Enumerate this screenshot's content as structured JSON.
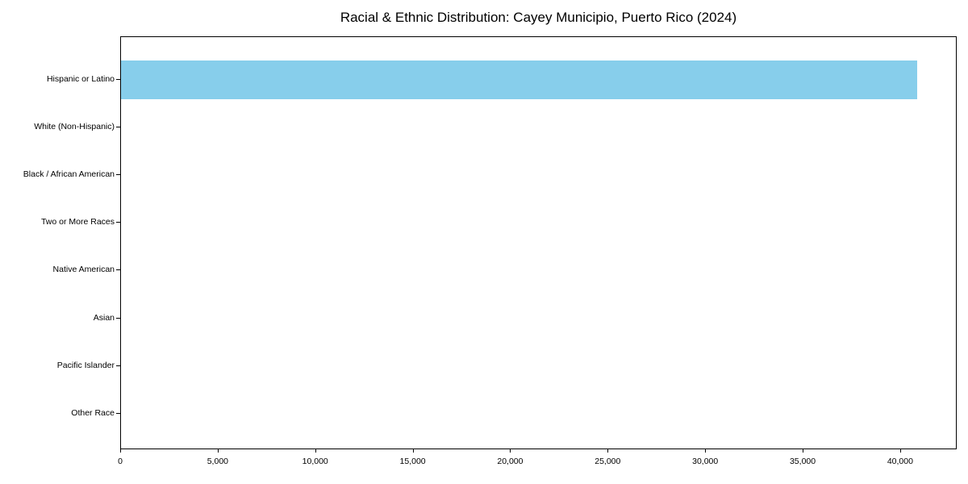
{
  "chart_data": {
    "type": "bar",
    "orientation": "horizontal",
    "title": "Racial & Ethnic Distribution: Cayey Municipio, Puerto Rico (2024)",
    "categories": [
      "Hispanic or Latino",
      "White (Non-Hispanic)",
      "Black / African American",
      "Two or More Races",
      "Native American",
      "Asian",
      "Pacific Islander",
      "Other Race"
    ],
    "values": [
      40850,
      0,
      0,
      0,
      0,
      0,
      0,
      0
    ],
    "xlabel": "",
    "ylabel": "",
    "xlim": [
      0,
      42900
    ],
    "x_ticks": [
      0,
      5000,
      10000,
      15000,
      20000,
      25000,
      30000,
      35000,
      40000
    ],
    "x_tick_labels": [
      "0",
      "5,000",
      "10,000",
      "15,000",
      "20,000",
      "25,000",
      "30,000",
      "35,000",
      "40,000"
    ],
    "grid": false,
    "legend": false,
    "colors": {
      "bar": "#87CEEB",
      "background": "#ffffff",
      "axis": "#000000",
      "text": "#000000"
    }
  }
}
